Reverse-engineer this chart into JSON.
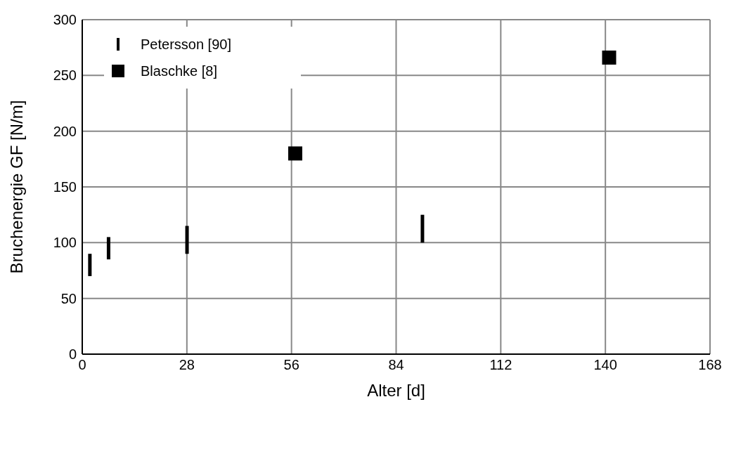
{
  "chart_data": {
    "type": "scatter",
    "xlabel": "Alter [d]",
    "ylabel": "Bruchenergie GF [N/m]",
    "xlim": [
      0,
      168
    ],
    "xticks": [
      0,
      28,
      56,
      84,
      112,
      140,
      168
    ],
    "ylim": [
      0,
      300
    ],
    "yticks": [
      0,
      50,
      100,
      150,
      200,
      250,
      300
    ],
    "grid": true,
    "legend": "top left",
    "marker": "square",
    "series": [
      {
        "name": "Petersson [90]",
        "type": "bar",
        "color": "#000000",
        "x": [
          2,
          7,
          28,
          91
        ],
        "base": [
          70,
          85,
          90,
          100
        ],
        "values": [
          20,
          20,
          25,
          25
        ]
      },
      {
        "name": "Blaschke [8]",
        "color": "#000000",
        "x": [
          57,
          141
        ],
        "values": [
          180,
          266
        ]
      }
    ]
  }
}
